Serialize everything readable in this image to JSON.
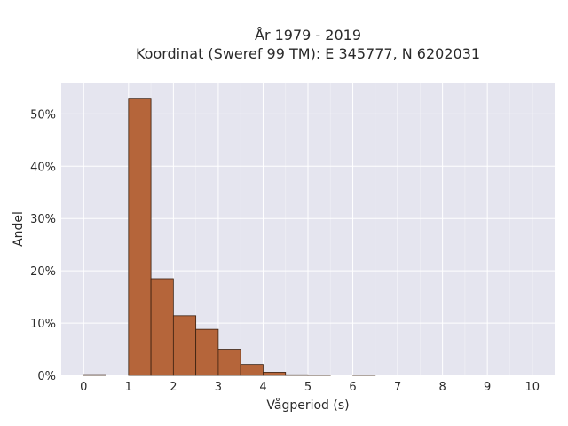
{
  "chart_data": {
    "type": "bar",
    "title": [
      "År 1979 - 2019",
      "Koordinat (Sweref 99 TM): E 345777, N 6202031"
    ],
    "xlabel": "Vågperiod (s)",
    "ylabel": "Andel",
    "x_ticks": [
      "0",
      "1",
      "2",
      "3",
      "4",
      "5",
      "6",
      "7",
      "8",
      "9",
      "10"
    ],
    "y_ticks": [
      "0%",
      "10%",
      "20%",
      "30%",
      "40%",
      "50%"
    ],
    "xlim": [
      -0.5,
      10.5
    ],
    "ylim": [
      0,
      0.56
    ],
    "bin_width": 0.5,
    "bins": [
      {
        "x0": 0.0,
        "value": 0.0015
      },
      {
        "x0": 1.0,
        "value": 0.53
      },
      {
        "x0": 1.5,
        "value": 0.185
      },
      {
        "x0": 2.0,
        "value": 0.114
      },
      {
        "x0": 2.5,
        "value": 0.088
      },
      {
        "x0": 3.0,
        "value": 0.05
      },
      {
        "x0": 3.5,
        "value": 0.021
      },
      {
        "x0": 4.0,
        "value": 0.006
      },
      {
        "x0": 4.5,
        "value": 0.0012
      },
      {
        "x0": 5.0,
        "value": 0.0008
      },
      {
        "x0": 6.0,
        "value": 0.0006
      }
    ],
    "bar_color": "#b5653a",
    "bar_edge_color": "#3a2010",
    "plot_background": "#e5e5ef",
    "grid": true
  }
}
